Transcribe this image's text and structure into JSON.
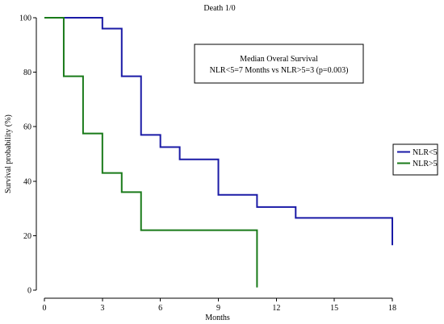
{
  "chart_data": {
    "type": "line",
    "title": "Death 1/0",
    "xlabel": "Months",
    "ylabel": "Survival probability (%)",
    "xlim": [
      0,
      18
    ],
    "ylim": [
      0,
      100
    ],
    "xticks": [
      "0",
      "3",
      "6",
      "9",
      "12",
      "15",
      "18"
    ],
    "yticks": [
      "0",
      "20",
      "40",
      "60",
      "80",
      "100"
    ],
    "grid": false,
    "step": true,
    "legend_position": "right",
    "annotation": {
      "line1": "Median Overal Survival",
      "line2": "NLR<5=7 Months vs NLR>5=3 (p=0.003)"
    },
    "series": [
      {
        "name": "NLR<5",
        "color": "#1a1aa6",
        "x": [
          0,
          3,
          4,
          5,
          6,
          7,
          9,
          11,
          13,
          18
        ],
        "y": [
          100,
          96,
          78.5,
          57,
          52.5,
          48,
          35,
          30.5,
          26.5,
          16.5
        ]
      },
      {
        "name": "NLR>5",
        "color": "#197a19",
        "x": [
          0,
          1,
          2,
          3,
          4,
          5,
          11
        ],
        "y": [
          100,
          78.5,
          57.5,
          43,
          36,
          22,
          1
        ]
      }
    ]
  }
}
